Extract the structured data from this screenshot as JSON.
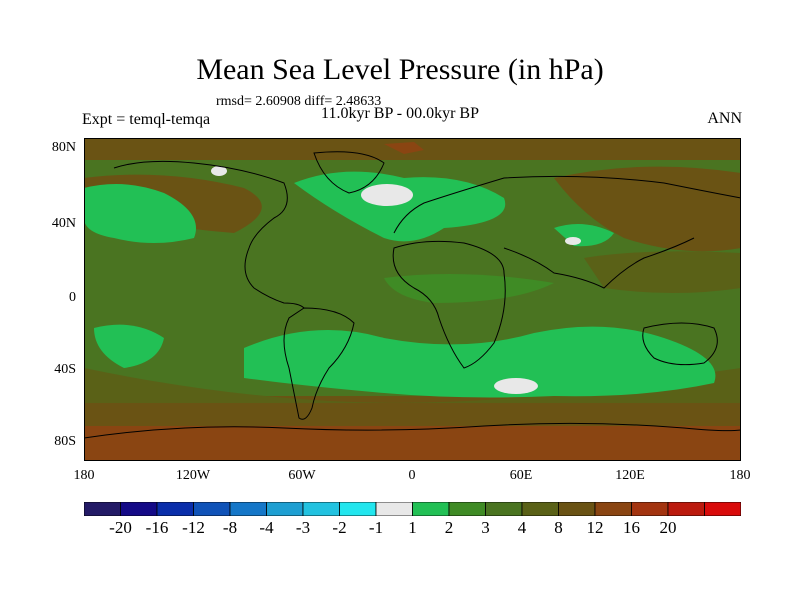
{
  "title": "Mean Sea Level Pressure (in hPa)",
  "stats": "rmsd= 2.60908 diff= 2.48633",
  "period": "11.0kyr BP - 00.0kyr BP",
  "experiment": "Expt = temql-temqa",
  "season": "ANN",
  "lat_labels": [
    "80N",
    "40N",
    "0",
    "40S",
    "80S"
  ],
  "lon_labels": [
    "180",
    "120W",
    "60W",
    "0",
    "60E",
    "120E",
    "180"
  ],
  "colorbar": {
    "colors": [
      "#231a66",
      "#140a87",
      "#0a2eaa",
      "#1053b8",
      "#1577c8",
      "#1e9fd2",
      "#22c2e0",
      "#22e6ee",
      "#e8e8e8",
      "#22c055",
      "#3f8b25",
      "#4a7421",
      "#5a6117",
      "#6a5314",
      "#8a4512",
      "#a33410",
      "#bb1a0e",
      "#d90b0b"
    ],
    "labels": [
      "-20",
      "-16",
      "-12",
      "-8",
      "-4",
      "-3",
      "-2",
      "-1",
      "1",
      "2",
      "3",
      "4",
      "8",
      "12",
      "16",
      "20"
    ]
  },
  "map_colors": {
    "base": "#4a7421",
    "zone_2": "#22c055",
    "zone_3": "#3f8b25",
    "zone_8": "#5a6117",
    "zone_12": "#6a5314",
    "zone_16": "#8a4512",
    "near_zero": "#e8e8e8",
    "coastline": "#000000"
  }
}
